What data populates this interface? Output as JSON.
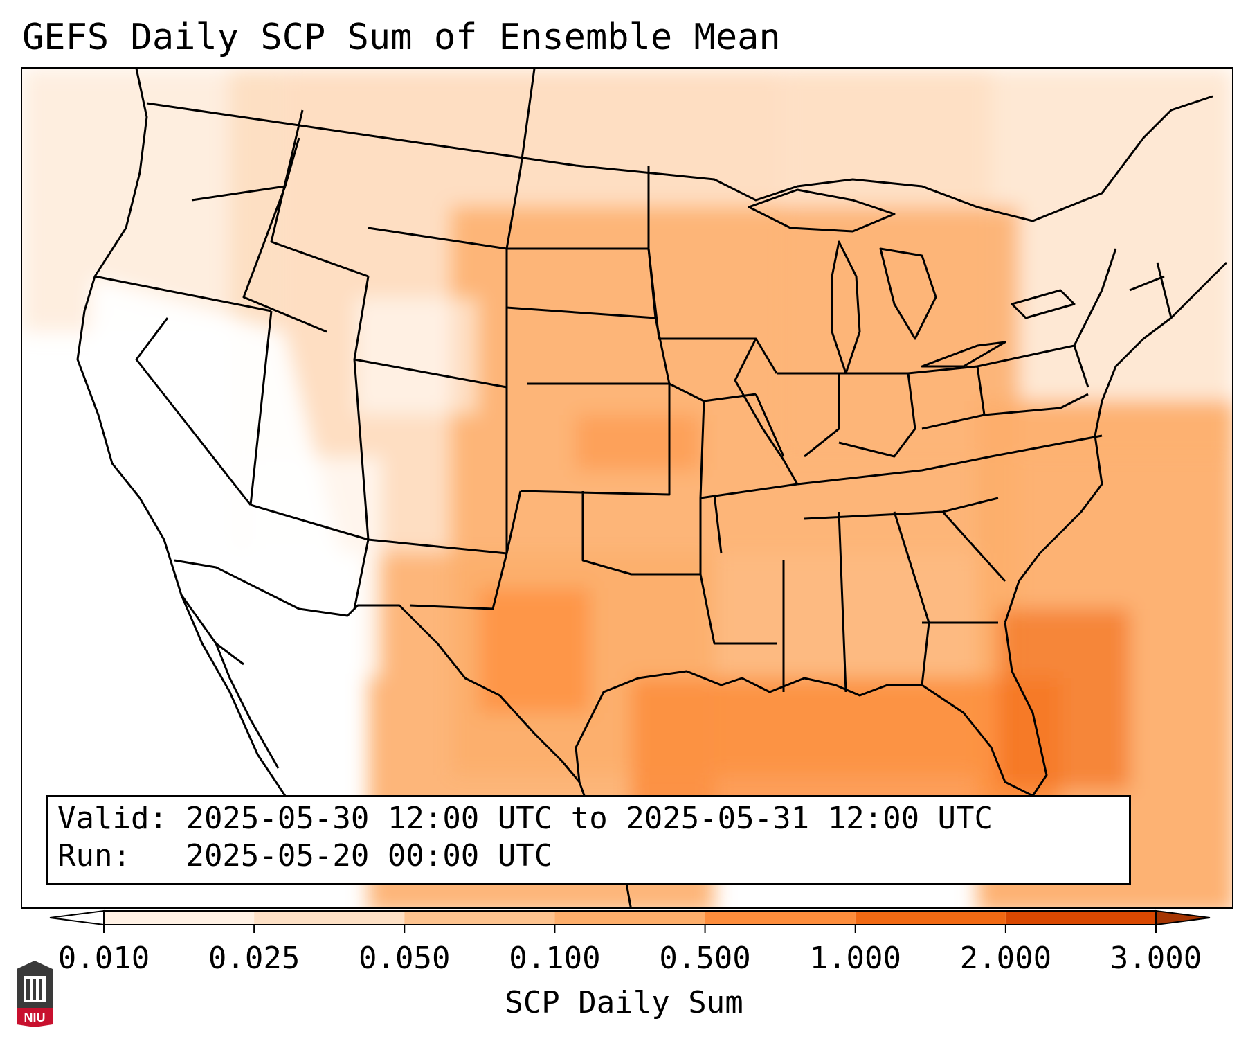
{
  "title": "GEFS Daily SCP Sum of Ensemble Mean",
  "info": {
    "valid_label": "Valid:",
    "valid_value": "2025-05-30 12:00 UTC to 2025-05-31 12:00 UTC",
    "run_label": "Run:",
    "run_value": "2025-05-20 00:00 UTC"
  },
  "colorbar": {
    "label": "SCP Daily Sum",
    "ticks": [
      "0.010",
      "0.025",
      "0.050",
      "0.100",
      "0.500",
      "1.000",
      "2.000",
      "3.000"
    ],
    "colors": [
      "#ffffff",
      "#fff1e4",
      "#fde0c5",
      "#fdc38f",
      "#fdae6b",
      "#fd8d3c",
      "#f16913",
      "#d94801",
      "#a63603"
    ]
  },
  "logo": {
    "text": "NIU",
    "icon": "niu-building-icon"
  }
}
